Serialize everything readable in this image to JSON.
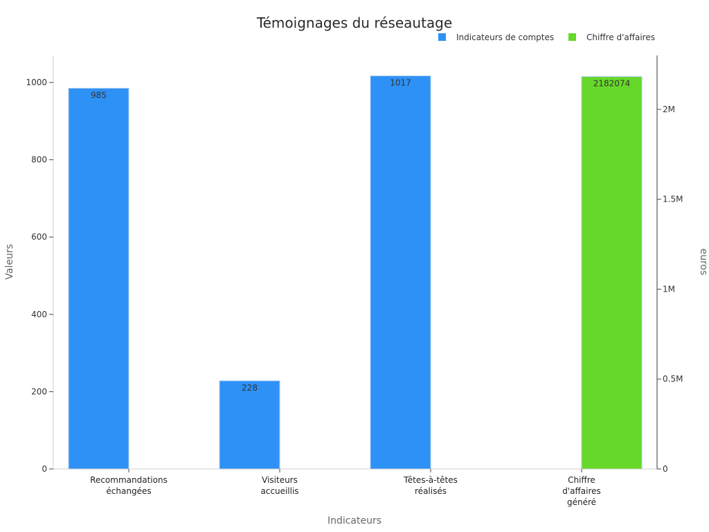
{
  "chart_data": {
    "type": "bar",
    "title": "Témoignages du réseautage",
    "xlabel": "Indicateurs",
    "ylabel": "Valeurs",
    "y2label": "euros",
    "categories": [
      [
        "Recommandations",
        "échangées"
      ],
      [
        "Visiteurs",
        "accueillis"
      ],
      [
        "Têtes-à-têtes",
        "réalisés"
      ],
      [
        "Chiffre",
        "d'affaires",
        "généré"
      ]
    ],
    "ylim": [
      0,
      1070
    ],
    "y2lim": [
      0,
      2300000
    ],
    "yticks": [
      0,
      200,
      400,
      600,
      800,
      1000
    ],
    "y2ticks": [
      {
        "value": 0,
        "label": "0"
      },
      {
        "value": 500000,
        "label": "0.5M"
      },
      {
        "value": 1000000,
        "label": "1M"
      },
      {
        "value": 1500000,
        "label": "1.5M"
      },
      {
        "value": 2000000,
        "label": "2M"
      }
    ],
    "legend_position": "top-right",
    "grid": false,
    "series": [
      {
        "name": "Indicateurs de comptes",
        "axis": "left",
        "color": "#2e91f6",
        "values": [
          985,
          228,
          1017,
          null
        ]
      },
      {
        "name": "Chiffre d'affaires",
        "axis": "right",
        "color": "#66d829",
        "values": [
          null,
          null,
          null,
          2182074
        ]
      }
    ]
  }
}
